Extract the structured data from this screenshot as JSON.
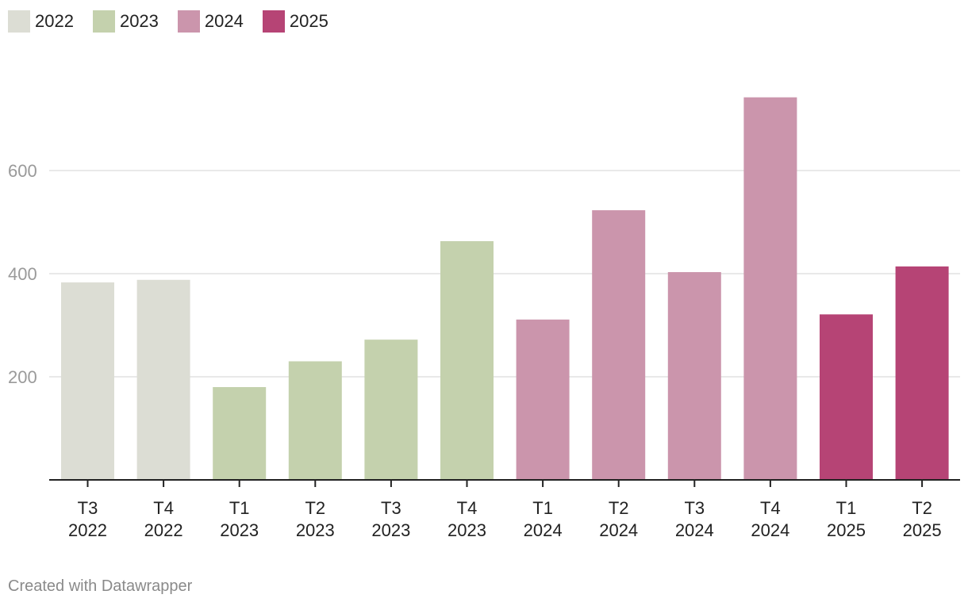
{
  "legend": [
    {
      "label": "2022",
      "color": "#dcddd4"
    },
    {
      "label": "2023",
      "color": "#c4d1ad"
    },
    {
      "label": "2024",
      "color": "#cb95ac"
    },
    {
      "label": "2025",
      "color": "#b64475"
    }
  ],
  "chart_data": {
    "type": "bar",
    "title": "",
    "xlabel": "",
    "ylabel": "",
    "ylim": [
      0,
      740
    ],
    "yticks": [
      200,
      400,
      600
    ],
    "grid": true,
    "legend_position": "top-left",
    "categories": [
      {
        "quarter": "T3",
        "year": "2022"
      },
      {
        "quarter": "T4",
        "year": "2022"
      },
      {
        "quarter": "T1",
        "year": "2023"
      },
      {
        "quarter": "T2",
        "year": "2023"
      },
      {
        "quarter": "T3",
        "year": "2023"
      },
      {
        "quarter": "T4",
        "year": "2023"
      },
      {
        "quarter": "T1",
        "year": "2024"
      },
      {
        "quarter": "T2",
        "year": "2024"
      },
      {
        "quarter": "T3",
        "year": "2024"
      },
      {
        "quarter": "T4",
        "year": "2024"
      },
      {
        "quarter": "T1",
        "year": "2025"
      },
      {
        "quarter": "T2",
        "year": "2025"
      }
    ],
    "values": [
      383,
      388,
      180,
      230,
      272,
      463,
      311,
      523,
      403,
      742,
      321,
      414
    ],
    "series_colors": [
      "#dcddd4",
      "#dcddd4",
      "#c4d1ad",
      "#c4d1ad",
      "#c4d1ad",
      "#c4d1ad",
      "#cb95ac",
      "#cb95ac",
      "#cb95ac",
      "#cb95ac",
      "#b64475",
      "#b64475"
    ]
  },
  "footer": {
    "credit": "Created with Datawrapper"
  }
}
